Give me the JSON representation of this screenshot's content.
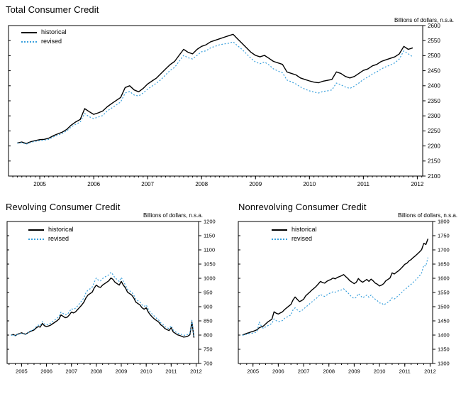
{
  "figure": {
    "background": "#ffffff",
    "accent_blue": "#3aa0dc",
    "line_black": "#000000"
  },
  "chart_data": [
    {
      "type": "line",
      "title": "Total Consumer Credit",
      "units_label": "Billions of dollars, n.s.a.",
      "legend_position": "top-left",
      "grid": false,
      "x_start": 2004.583,
      "x_step": 0.083333,
      "xlim": [
        2004.42,
        2012.1
      ],
      "ylim": [
        2100,
        2600
      ],
      "ytick_step": 50,
      "xticks": [
        2005,
        2006,
        2007,
        2008,
        2009,
        2010,
        2011,
        2012
      ],
      "series": [
        {
          "name": "historical",
          "color": "#000000",
          "style": "solid",
          "values": [
            2210,
            2213,
            2208,
            2214,
            2218,
            2221,
            2222,
            2226,
            2234,
            2240,
            2246,
            2255,
            2269,
            2280,
            2288,
            2324,
            2314,
            2305,
            2310,
            2316,
            2330,
            2341,
            2351,
            2361,
            2394,
            2400,
            2386,
            2380,
            2391,
            2406,
            2416,
            2426,
            2441,
            2456,
            2470,
            2481,
            2501,
            2521,
            2511,
            2506,
            2521,
            2531,
            2536,
            2546,
            2551,
            2556,
            2561,
            2566,
            2571,
            2556,
            2541,
            2526,
            2511,
            2501,
            2496,
            2501,
            2491,
            2481,
            2476,
            2471,
            2446,
            2441,
            2436,
            2426,
            2421,
            2416,
            2412,
            2410,
            2415,
            2418,
            2421,
            2446,
            2441,
            2431,
            2426,
            2431,
            2441,
            2451,
            2456,
            2466,
            2471,
            2481,
            2486,
            2491,
            2496,
            2506,
            2531,
            2521,
            2526
          ]
        },
        {
          "name": "revised",
          "color": "#3aa0dc",
          "style": "dotted",
          "values": [
            2209,
            2211,
            2206,
            2212,
            2215,
            2218,
            2219,
            2222,
            2230,
            2236,
            2241,
            2250,
            2263,
            2272,
            2279,
            2308,
            2297,
            2291,
            2296,
            2301,
            2316,
            2326,
            2336,
            2346,
            2376,
            2381,
            2369,
            2366,
            2376,
            2389,
            2399,
            2409,
            2421,
            2436,
            2451,
            2461,
            2481,
            2501,
            2493,
            2489,
            2501,
            2513,
            2516,
            2526,
            2531,
            2536,
            2539,
            2541,
            2546,
            2533,
            2521,
            2506,
            2491,
            2479,
            2473,
            2479,
            2469,
            2456,
            2449,
            2443,
            2419,
            2413,
            2406,
            2396,
            2389,
            2383,
            2379,
            2376,
            2381,
            2383,
            2386,
            2409,
            2403,
            2396,
            2391,
            2399,
            2409,
            2421,
            2429,
            2439,
            2446,
            2456,
            2463,
            2469,
            2476,
            2489,
            2516,
            2506,
            2496
          ]
        }
      ]
    },
    {
      "type": "line",
      "title": "Revolving Consumer Credit",
      "units_label": "Billions of dollars, n.s.a.",
      "legend_position": "top-left",
      "grid": false,
      "x_start": 2004.583,
      "x_step": 0.083333,
      "xlim": [
        2004.42,
        2012.1
      ],
      "ylim": [
        700,
        1200
      ],
      "ytick_step": 50,
      "xticks": [
        2005,
        2006,
        2007,
        2008,
        2009,
        2010,
        2011,
        2012
      ],
      "series": [
        {
          "name": "historical",
          "color": "#000000",
          "style": "solid",
          "values": [
            800,
            802,
            798,
            803,
            805,
            808,
            805,
            803,
            808,
            812,
            815,
            818,
            825,
            830,
            828,
            841,
            833,
            830,
            832,
            835,
            840,
            845,
            850,
            856,
            871,
            866,
            861,
            863,
            871,
            881,
            878,
            882,
            890,
            898,
            906,
            916,
            931,
            941,
            946,
            951,
            966,
            976,
            970,
            968,
            976,
            981,
            986,
            991,
            1001,
            996,
            986,
            981,
            976,
            989,
            976,
            966,
            951,
            946,
            941,
            931,
            916,
            911,
            906,
            896,
            891,
            896,
            881,
            871,
            863,
            856,
            851,
            846,
            836,
            831,
            823,
            819,
            816,
            826,
            811,
            806,
            801,
            799,
            796,
            793,
            794,
            796,
            801,
            846,
            791
          ]
        },
        {
          "name": "revised",
          "color": "#3aa0dc",
          "style": "dotted",
          "values": [
            799,
            801,
            797,
            802,
            804,
            807,
            804,
            802,
            808,
            813,
            817,
            821,
            829,
            835,
            833,
            847,
            839,
            836,
            838,
            842,
            848,
            853,
            859,
            865,
            881,
            876,
            871,
            873,
            882,
            893,
            890,
            895,
            903,
            912,
            921,
            931,
            949,
            959,
            963,
            969,
            986,
            1001,
            993,
            991,
            999,
            1004,
            1009,
            1012,
            1021,
            1013,
            1001,
            996,
            989,
            1003,
            989,
            976,
            961,
            956,
            951,
            941,
            926,
            921,
            916,
            906,
            901,
            906,
            891,
            881,
            873,
            866,
            859,
            853,
            843,
            838,
            830,
            826,
            823,
            833,
            818,
            812,
            807,
            805,
            802,
            799,
            800,
            802,
            807,
            852,
            797
          ]
        }
      ]
    },
    {
      "type": "line",
      "title": "Nonrevolving Consumer Credit",
      "units_label": "Billions of dollars, n.s.a.",
      "legend_position": "top-left",
      "grid": false,
      "x_start": 2004.583,
      "x_step": 0.083333,
      "xlim": [
        2004.42,
        2012.1
      ],
      "ylim": [
        1300,
        1800
      ],
      "ytick_step": 50,
      "xticks": [
        2005,
        2006,
        2007,
        2008,
        2009,
        2010,
        2011,
        2012
      ],
      "series": [
        {
          "name": "historical",
          "color": "#000000",
          "style": "solid",
          "values": [
            1400,
            1403,
            1406,
            1408,
            1411,
            1413,
            1416,
            1419,
            1426,
            1429,
            1432,
            1439,
            1446,
            1451,
            1456,
            1482,
            1477,
            1474,
            1478,
            1482,
            1490,
            1496,
            1502,
            1508,
            1524,
            1534,
            1526,
            1518,
            1521,
            1526,
            1538,
            1545,
            1552,
            1559,
            1565,
            1572,
            1580,
            1589,
            1585,
            1583,
            1589,
            1593,
            1596,
            1601,
            1598,
            1603,
            1606,
            1609,
            1613,
            1606,
            1599,
            1591,
            1586,
            1581,
            1586,
            1599,
            1591,
            1586,
            1591,
            1596,
            1589,
            1597,
            1591,
            1583,
            1579,
            1573,
            1576,
            1581,
            1591,
            1596,
            1601,
            1619,
            1615,
            1621,
            1626,
            1633,
            1641,
            1649,
            1653,
            1661,
            1666,
            1673,
            1679,
            1686,
            1693,
            1701,
            1723,
            1719,
            1739
          ]
        },
        {
          "name": "revised",
          "color": "#3aa0dc",
          "style": "dotted",
          "values": [
            1399,
            1401,
            1403,
            1405,
            1406,
            1407,
            1409,
            1413,
            1446,
            1431,
            1423,
            1429,
            1433,
            1437,
            1441,
            1457,
            1451,
            1447,
            1449,
            1451,
            1459,
            1463,
            1467,
            1471,
            1489,
            1496,
            1489,
            1483,
            1486,
            1491,
            1499,
            1504,
            1511,
            1517,
            1523,
            1529,
            1536,
            1543,
            1539,
            1536,
            1541,
            1546,
            1549,
            1553,
            1551,
            1554,
            1557,
            1559,
            1563,
            1556,
            1549,
            1541,
            1533,
            1529,
            1533,
            1546,
            1539,
            1531,
            1536,
            1541,
            1533,
            1541,
            1533,
            1526,
            1521,
            1513,
            1513,
            1506,
            1511,
            1516,
            1521,
            1531,
            1527,
            1533,
            1539,
            1546,
            1553,
            1561,
            1566,
            1573,
            1579,
            1586,
            1593,
            1601,
            1609,
            1619,
            1646,
            1643,
            1673
          ]
        }
      ]
    }
  ]
}
